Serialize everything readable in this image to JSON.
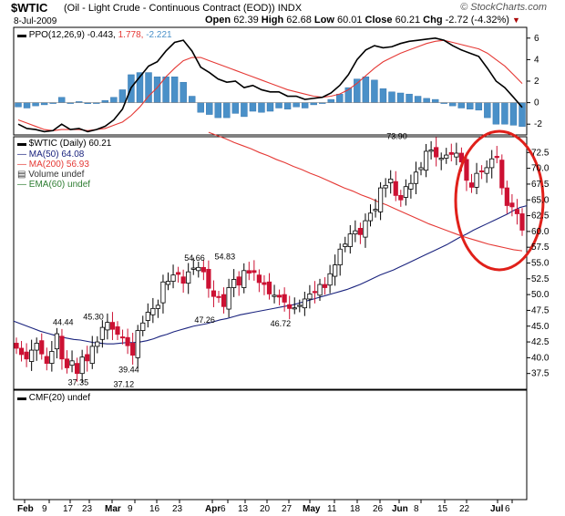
{
  "header": {
    "ticker": "$WTIC",
    "description": "(Oil - Light Crude - Continuous Contract (EOD)) INDX",
    "date": "8-Jul-2009",
    "open_label": "Open",
    "open": "62.39",
    "high_label": "High",
    "high": "62.68",
    "low_label": "Low",
    "low": "60.01",
    "close_label": "Close",
    "close": "60.21",
    "chg_label": "Chg",
    "chg": "-2.72 (-4.32%)",
    "logo": "© StockCharts.com"
  },
  "colors": {
    "up_candle": "#ffffff",
    "down_candle": "#cc1133",
    "ma50": "#1a237e",
    "ma200": "#e53935",
    "ppo_line": "#000000",
    "ppo_signal": "#e53935",
    "histogram": "#4a90c8",
    "circle": "#e0201a"
  },
  "chart_data": [
    {
      "type": "line",
      "name": "ppo-panel",
      "legend": {
        "text": "PPO(12,26,9)",
        "ppo": "-0.443",
        "signal": "1.778",
        "hist": "-2.221"
      },
      "ylim": [
        -3,
        7
      ],
      "y_ticks": [
        "6",
        "4",
        "2",
        "0",
        "-2"
      ],
      "series": [
        {
          "name": "PPO",
          "values": [
            -2.0,
            -2.4,
            -2.5,
            -2.7,
            -2.6,
            -2.0,
            -2.5,
            -2.4,
            -2.7,
            -2.5,
            -2.2,
            -1.6,
            -0.6,
            1.4,
            2.4,
            3.4,
            3.8,
            4.8,
            5.6,
            5.8,
            4.8,
            3.3,
            2.8,
            2.2,
            1.9,
            2.0,
            1.4,
            1.6,
            1.2,
            1.0,
            1.0,
            0.6,
            0.6,
            0.3,
            0.4,
            0.5,
            0.9,
            1.6,
            2.6,
            4.0,
            4.9,
            5.3,
            5.1,
            5.2,
            5.5,
            5.7,
            5.8,
            5.9,
            6.0,
            5.8,
            5.3,
            4.9,
            4.6,
            4.3,
            3.2,
            2.0,
            1.4,
            0.5,
            -0.44
          ]
        },
        {
          "name": "Signal",
          "values": [
            -1.6,
            -1.9,
            -2.2,
            -2.5,
            -2.6,
            -2.5,
            -2.5,
            -2.5,
            -2.6,
            -2.5,
            -2.4,
            -2.1,
            -1.8,
            -1.2,
            -0.4,
            0.6,
            1.4,
            2.4,
            3.2,
            3.9,
            4.2,
            4.2,
            3.9,
            3.6,
            3.3,
            3.0,
            2.7,
            2.4,
            2.1,
            1.8,
            1.5,
            1.2,
            1.0,
            0.8,
            0.6,
            0.5,
            0.6,
            0.8,
            1.2,
            1.8,
            2.5,
            3.2,
            3.8,
            4.2,
            4.6,
            4.9,
            5.2,
            5.5,
            5.7,
            5.8,
            5.6,
            5.4,
            5.2,
            5.0,
            4.6,
            4.0,
            3.4,
            2.6,
            1.778
          ]
        }
      ]
    },
    {
      "type": "bar",
      "name": "price-panel",
      "legend": {
        "title": "$WTIC (Daily) 60.21",
        "ma50": "MA(50) 64.08",
        "ma200": "MA(200) 56.93",
        "volume": "Volume undef",
        "ema": "EMA(60) undef"
      },
      "ylim": [
        35,
        75
      ],
      "y_ticks": [
        "72.5",
        "70.0",
        "67.5",
        "65.0",
        "62.5",
        "60.0",
        "57.5",
        "55.0",
        "52.5",
        "50.0",
        "47.5",
        "45.0",
        "42.5",
        "40.0",
        "37.5"
      ],
      "annotations": [
        {
          "text": "44.44",
          "value": 44.44
        },
        {
          "text": "37.35",
          "value": 37.35
        },
        {
          "text": "37.12",
          "value": 37.12
        },
        {
          "text": "45.30",
          "value": 45.3
        },
        {
          "text": "39.44",
          "value": 39.44
        },
        {
          "text": "54.66",
          "value": 54.66
        },
        {
          "text": "47.26",
          "value": 47.26
        },
        {
          "text": "54.83",
          "value": 54.83
        },
        {
          "text": "46.72",
          "value": 46.72
        },
        {
          "text": "73.90",
          "value": 73.9
        }
      ],
      "close": [
        41.5,
        40.5,
        39.8,
        41.2,
        42.3,
        40.6,
        39.1,
        41.0,
        43.8,
        39.8,
        38.4,
        39.5,
        37.5,
        40.1,
        39.5,
        41.8,
        42.5,
        44.8,
        45.6,
        44.5,
        43.7,
        43.2,
        41.9,
        40.4,
        44.3,
        45.5,
        47.2,
        47.8,
        48.3,
        52.0,
        52.1,
        53.1,
        53.2,
        51.8,
        53.6,
        54.2,
        54.3,
        53.6,
        51.0,
        49.7,
        49.6,
        48.1,
        51.1,
        52.4,
        51.5,
        53.8,
        53.4,
        53.5,
        51.9,
        51.6,
        50.1,
        49.9,
        49.6,
        48.8,
        47.8,
        47.9,
        48.3,
        49.3,
        50.1,
        50.3,
        51.6,
        51.1,
        53.3,
        54.7,
        57.2,
        58.0,
        59.6,
        60.1,
        59.5,
        61.7,
        62.9,
        63.5,
        66.9,
        67.3,
        68.3,
        65.7,
        65.0,
        67.1,
        67.6,
        69.4,
        70.1,
        72.7,
        72.9,
        71.8,
        71.6,
        72.1,
        72.2,
        72.4,
        71.0,
        68.1,
        67.0,
        69.2,
        69.6,
        70.1,
        71.5,
        71.7,
        66.9,
        64.1,
        63.9,
        62.8,
        60.2
      ],
      "ma50": [
        45.8,
        45.4,
        45.0,
        44.6,
        44.2,
        43.9,
        43.6,
        43.3,
        43.1,
        42.9,
        42.8,
        42.6,
        42.4,
        42.3,
        42.2,
        42.2,
        42.3,
        42.4,
        42.4,
        42.5,
        42.7,
        43.0,
        43.4,
        43.7,
        44.1,
        44.4,
        44.7,
        45.0,
        45.2,
        45.4,
        45.7,
        46.0,
        46.2,
        46.5,
        46.8,
        47.0,
        47.2,
        47.4,
        47.6,
        47.8,
        48.0,
        48.2,
        48.4,
        48.7,
        49.0,
        49.3,
        49.6,
        49.9,
        50.2,
        50.5,
        50.8,
        51.2,
        51.6,
        52.1,
        52.6,
        53.1,
        53.5,
        53.9,
        54.4,
        54.9,
        55.4,
        55.9,
        56.4,
        56.9,
        57.4,
        57.9,
        58.5,
        59.1,
        59.6,
        60.2,
        60.7,
        61.2,
        61.7,
        62.2,
        62.7,
        63.3,
        63.8,
        64.08
      ],
      "ma200": [
        75.7,
        75.2,
        74.7,
        74.1,
        73.6,
        73.1,
        72.5,
        72.0,
        71.4,
        70.9,
        70.3,
        69.8,
        69.2,
        68.7,
        68.1,
        67.5,
        66.9,
        66.4,
        65.8,
        65.3,
        64.7,
        64.2,
        63.6,
        63.0,
        62.4,
        61.8,
        61.2,
        60.7,
        60.2,
        59.7,
        59.2,
        58.8,
        58.4,
        58.0,
        57.7,
        57.4,
        57.1,
        56.93
      ]
    },
    {
      "type": "line",
      "name": "cmf-panel",
      "legend": {
        "text": "CMF(20) undef"
      },
      "x_labels": [
        "Feb",
        "9",
        "17",
        "23",
        "Mar",
        "9",
        "16",
        "23",
        "Apr",
        "6",
        "13",
        "20",
        "27",
        "May",
        "11",
        "18",
        "26",
        "Jun",
        "8",
        "15",
        "22",
        "Jul",
        "6"
      ]
    }
  ]
}
